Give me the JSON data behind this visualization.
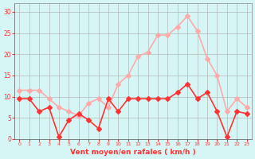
{
  "x": [
    0,
    1,
    2,
    3,
    4,
    5,
    6,
    7,
    8,
    9,
    10,
    11,
    12,
    13,
    14,
    15,
    16,
    17,
    18,
    19,
    20,
    21,
    22,
    23
  ],
  "wind_avg": [
    9.5,
    9.5,
    6.5,
    7.5,
    0.5,
    4.5,
    6.0,
    4.5,
    2.5,
    9.5,
    6.5,
    9.5,
    9.5,
    9.5,
    9.5,
    9.5,
    11.0,
    13.0,
    9.5,
    11.0,
    6.5,
    0.5,
    6.5,
    6.0
  ],
  "wind_gust": [
    11.5,
    11.5,
    11.5,
    9.5,
    7.5,
    6.5,
    5.5,
    8.5,
    9.5,
    7.5,
    13.0,
    15.0,
    19.5,
    20.5,
    24.5,
    24.5,
    26.5,
    29.0,
    25.5,
    19.0,
    15.0,
    6.5,
    9.5,
    7.5
  ],
  "avg_color": "#ff3333",
  "gust_color": "#ffaaaa",
  "background_color": "#d6f5f5",
  "grid_color": "#aaaaaa",
  "axis_color": "#ff3333",
  "xlabel": "Vent moyen/en rafales ( km/h )",
  "ylim": [
    0,
    32
  ],
  "xlim": [
    -0.5,
    23.5
  ],
  "yticks": [
    0,
    5,
    10,
    15,
    20,
    25,
    30
  ],
  "xticks": [
    0,
    1,
    2,
    3,
    4,
    5,
    6,
    7,
    8,
    9,
    10,
    11,
    12,
    13,
    14,
    15,
    16,
    17,
    18,
    19,
    20,
    21,
    22,
    23
  ],
  "marker_size": 3,
  "line_width": 1.2
}
